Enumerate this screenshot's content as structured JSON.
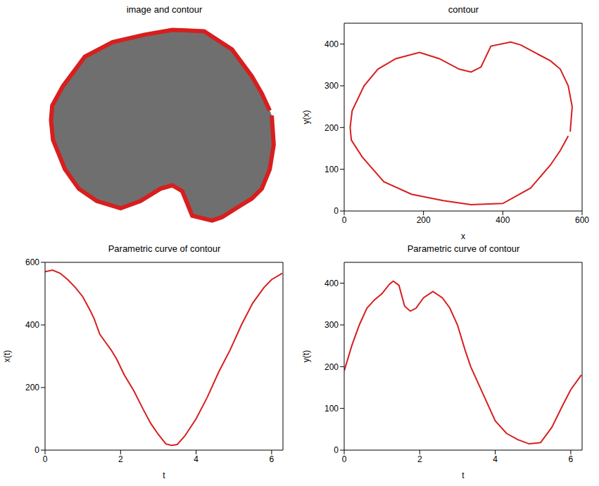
{
  "chart_data": [
    {
      "type": "image",
      "title": "image and contour",
      "color": "#d81e1e",
      "tick_labels": false,
      "xlim": [
        0,
        600
      ],
      "ylim": [
        0,
        420
      ]
    },
    {
      "type": "line",
      "title": "contour",
      "color": "#d81e1e",
      "x_label": "x",
      "y_label": "y(x)",
      "x": [
        570,
        575,
        565,
        545,
        520,
        490,
        445,
        420,
        370,
        345,
        320,
        290,
        240,
        190,
        130,
        85,
        50,
        20,
        15,
        18,
        45,
        100,
        170,
        250,
        320,
        400,
        470,
        520,
        545,
        565
      ],
      "values": [
        190,
        250,
        300,
        340,
        360,
        375,
        398,
        405,
        395,
        345,
        333,
        340,
        365,
        380,
        365,
        340,
        300,
        240,
        200,
        170,
        130,
        70,
        40,
        25,
        15,
        18,
        55,
        110,
        145,
        180
      ],
      "xlim": [
        0,
        600
      ],
      "xticks": [
        0,
        200,
        400,
        600
      ],
      "ylim": [
        0,
        450
      ],
      "yticks": [
        0,
        100,
        200,
        300,
        400
      ]
    },
    {
      "type": "line",
      "title": "Parametric curve of contour",
      "color": "#d81e1e",
      "x_label": "t",
      "y_label": "x(t)",
      "x": [
        0,
        0.2,
        0.4,
        0.6,
        0.8,
        1.0,
        1.2,
        1.3,
        1.45,
        1.6,
        1.75,
        1.9,
        2.1,
        2.35,
        2.6,
        2.8,
        3.0,
        3.2,
        3.35,
        3.5,
        3.7,
        4.0,
        4.3,
        4.6,
        4.9,
        5.2,
        5.5,
        5.8,
        6.0,
        6.28
      ],
      "values": [
        570,
        575,
        565,
        545,
        520,
        490,
        445,
        420,
        370,
        345,
        320,
        290,
        240,
        190,
        130,
        85,
        50,
        20,
        15,
        18,
        45,
        100,
        170,
        250,
        320,
        400,
        470,
        520,
        545,
        565
      ],
      "xlim": [
        0,
        6.3
      ],
      "xticks": [
        0,
        2,
        4,
        6
      ],
      "ylim": [
        0,
        600
      ],
      "yticks": [
        0,
        200,
        400,
        600
      ]
    },
    {
      "type": "line",
      "title": "Parametric curve of contour",
      "color": "#d81e1e",
      "x_label": "t",
      "y_label": "y(t)",
      "x": [
        0,
        0.2,
        0.4,
        0.6,
        0.8,
        1.0,
        1.2,
        1.3,
        1.45,
        1.6,
        1.75,
        1.9,
        2.1,
        2.35,
        2.6,
        2.8,
        3.0,
        3.2,
        3.35,
        3.5,
        3.7,
        4.0,
        4.3,
        4.6,
        4.9,
        5.2,
        5.5,
        5.8,
        6.0,
        6.28
      ],
      "values": [
        190,
        250,
        300,
        340,
        360,
        375,
        398,
        405,
        395,
        345,
        333,
        340,
        365,
        380,
        365,
        340,
        300,
        240,
        200,
        170,
        130,
        70,
        40,
        25,
        15,
        18,
        55,
        110,
        145,
        180
      ],
      "xlim": [
        0,
        6.3
      ],
      "xticks": [
        0,
        2,
        4,
        6
      ],
      "ylim": [
        0,
        450
      ],
      "yticks": [
        0,
        100,
        200,
        300,
        400
      ]
    }
  ]
}
